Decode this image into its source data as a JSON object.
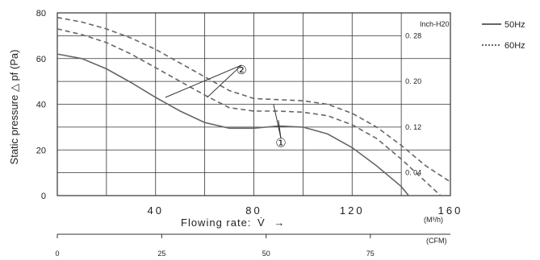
{
  "chart_data": {
    "type": "line",
    "ylabel": "Static pressure △ pf (Pa)",
    "xlabel": "Flowing rate:",
    "xlabel_symbol": "V̇",
    "xlabel_arrow": "→",
    "x_unit": "(M³/h)",
    "x2_unit": "(CFM)",
    "y_ticks": [
      "0",
      "20",
      "40",
      "60",
      "80"
    ],
    "x_ticks": [
      "40",
      "80",
      "120",
      "160"
    ],
    "x2_ticks": [
      "0",
      "25",
      "50",
      "75"
    ],
    "inch_label": "Inch-H20",
    "inch_ticks": [
      "0. 28",
      "0. 20",
      "0. 12",
      "0. 04"
    ],
    "inch_values_pa": [
      70,
      50,
      30,
      10
    ],
    "xlim": [
      0,
      160
    ],
    "ylim": [
      0,
      80
    ],
    "x2_values_m3h": [
      0,
      42.5,
      85,
      127.4
    ],
    "grid": true,
    "legend_position": "top-right",
    "series": [
      {
        "name": "50Hz",
        "style": "solid",
        "color": "#666666",
        "x": [
          0,
          10,
          20,
          30,
          40,
          50,
          60,
          70,
          80,
          90,
          100,
          110,
          120,
          130,
          140,
          143
        ],
        "y": [
          62,
          60,
          55.5,
          49.5,
          43,
          37,
          32,
          29.5,
          29.5,
          30.5,
          30,
          27,
          21,
          13,
          4,
          0
        ]
      },
      {
        "name": "60Hz",
        "style": "dashed",
        "color": "#666666",
        "x": [
          0,
          10,
          20,
          30,
          40,
          50,
          60,
          70,
          80,
          90,
          100,
          110,
          120,
          130,
          140,
          150,
          160
        ],
        "y": [
          78,
          76,
          73,
          69,
          64,
          58,
          52,
          46,
          42.5,
          42,
          41.5,
          40,
          36,
          30,
          22,
          13,
          6
        ]
      },
      {
        "name": "",
        "style": "dashed",
        "color": "#666666",
        "x": [
          0,
          10,
          20,
          30,
          40,
          50,
          60,
          70,
          80,
          90,
          100,
          110,
          120,
          130,
          140,
          150,
          156
        ],
        "y": [
          73,
          70.5,
          67,
          62,
          56,
          50,
          44,
          38.5,
          37,
          37,
          36.5,
          35,
          31,
          25,
          16,
          6,
          0
        ]
      }
    ],
    "annotations": [
      {
        "label": "①",
        "x": 91,
        "y": 23,
        "pointers": [
          [
            88,
            40
          ],
          [
            90,
            33
          ]
        ]
      },
      {
        "label": "②",
        "x": 75,
        "y": 55,
        "pointers": [
          [
            44,
            43
          ],
          [
            61,
            43
          ]
        ]
      }
    ]
  }
}
